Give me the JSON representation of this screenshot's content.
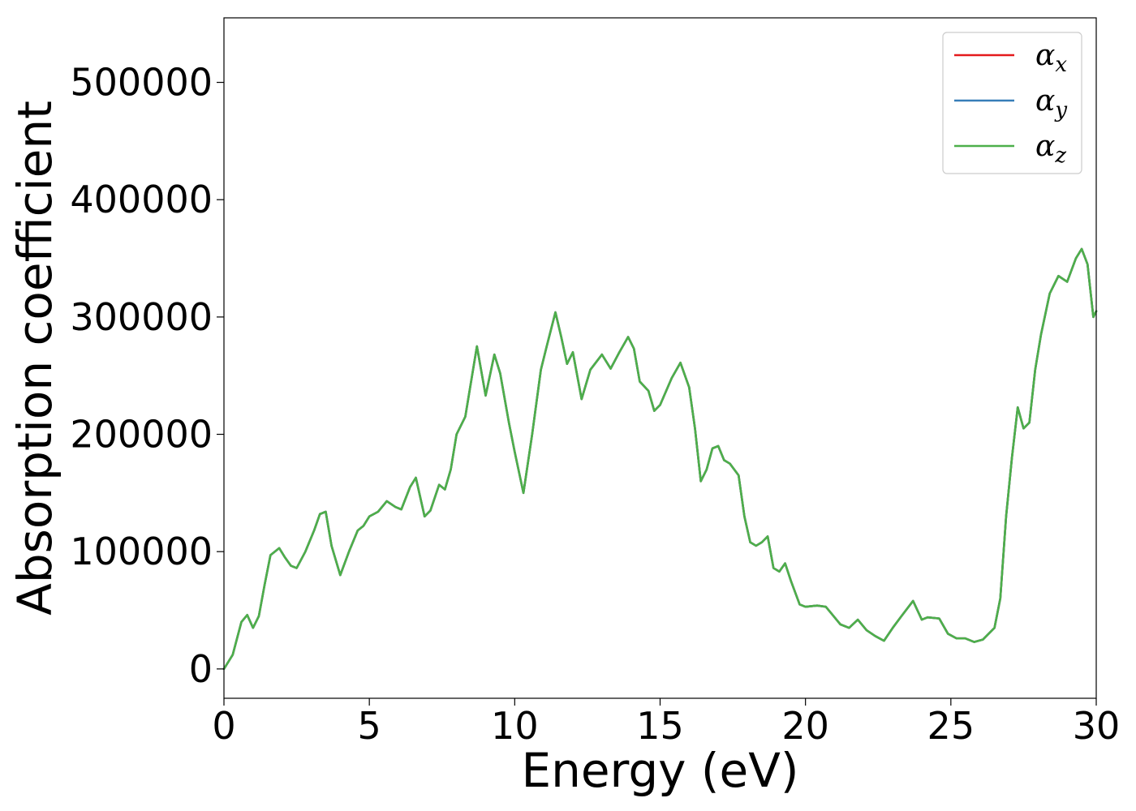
{
  "chart_data": {
    "type": "line",
    "title": "",
    "xlabel": "Energy (eV)",
    "ylabel": "Absorption coefficient",
    "xlim": [
      0,
      30
    ],
    "ylim": [
      -25000,
      555000
    ],
    "xticks": [
      0,
      5,
      10,
      15,
      20,
      25,
      30
    ],
    "xtick_labels": [
      "0",
      "5",
      "10",
      "15",
      "20",
      "25",
      "30"
    ],
    "yticks": [
      0,
      100000,
      200000,
      300000,
      400000,
      500000
    ],
    "ytick_labels": [
      "0",
      "100000",
      "200000",
      "300000",
      "400000",
      "500000"
    ],
    "grid": false,
    "legend": {
      "placement": "top-right",
      "entries": [
        {
          "symbol": "α",
          "sub": "x",
          "color": "#e41a1c"
        },
        {
          "symbol": "α",
          "sub": "y",
          "color": "#377eb8"
        },
        {
          "symbol": "α",
          "sub": "z",
          "color": "#4daf4a"
        }
      ]
    },
    "x": [
      0,
      0.3,
      0.6,
      0.8,
      1.0,
      1.2,
      1.4,
      1.6,
      1.9,
      2.1,
      2.3,
      2.5,
      2.8,
      3.1,
      3.3,
      3.5,
      3.7,
      4.0,
      4.3,
      4.6,
      4.8,
      5.0,
      5.3,
      5.6,
      5.9,
      6.1,
      6.4,
      6.6,
      6.9,
      7.1,
      7.4,
      7.6,
      7.8,
      8.0,
      8.3,
      8.7,
      9.0,
      9.3,
      9.5,
      9.8,
      10.0,
      10.3,
      10.6,
      10.9,
      11.1,
      11.4,
      11.6,
      11.8,
      12.0,
      12.3,
      12.6,
      13.0,
      13.3,
      13.6,
      13.9,
      14.1,
      14.3,
      14.6,
      14.8,
      15.0,
      15.4,
      15.7,
      16.0,
      16.2,
      16.4,
      16.6,
      16.8,
      17.0,
      17.2,
      17.4,
      17.7,
      17.9,
      18.1,
      18.3,
      18.5,
      18.7,
      18.9,
      19.1,
      19.3,
      19.5,
      19.8,
      20.0,
      20.4,
      20.7,
      20.9,
      21.2,
      21.5,
      21.8,
      22.1,
      22.4,
      22.7,
      23.0,
      23.3,
      23.7,
      24.0,
      24.2,
      24.6,
      24.9,
      25.2,
      25.5,
      25.8,
      26.1,
      26.3,
      26.5,
      26.7,
      26.9,
      27.1,
      27.3,
      27.5,
      27.7,
      27.9,
      28.1,
      28.4,
      28.7,
      29.0,
      29.3,
      29.5,
      29.7,
      29.9,
      30.0
    ],
    "series": [
      {
        "name": "αx",
        "color": "#e41a1c",
        "values": [
          0,
          12000,
          40000,
          46000,
          35000,
          45000,
          72000,
          97000,
          103000,
          95000,
          88000,
          86000,
          100000,
          118000,
          132000,
          134000,
          105000,
          80000,
          100000,
          118000,
          122000,
          130000,
          134000,
          143000,
          138000,
          136000,
          155000,
          163000,
          130000,
          135000,
          157000,
          153000,
          170000,
          200000,
          215000,
          275000,
          233000,
          268000,
          252000,
          210000,
          185000,
          150000,
          200000,
          255000,
          275000,
          304000,
          283000,
          260000,
          270000,
          230000,
          255000,
          268000,
          256000,
          270000,
          283000,
          273000,
          245000,
          237000,
          220000,
          225000,
          248000,
          261000,
          240000,
          205000,
          160000,
          170000,
          188000,
          190000,
          178000,
          175000,
          165000,
          130000,
          108000,
          105000,
          108000,
          113000,
          86000,
          83000,
          90000,
          75000,
          55000,
          53000,
          54000,
          53000,
          47000,
          38000,
          35000,
          42000,
          33000,
          28000,
          24000,
          35000,
          45000,
          58000,
          42000,
          44000,
          43000,
          30000,
          26000,
          26000,
          23000,
          25000,
          30000,
          35000,
          60000,
          130000,
          180000,
          223000,
          205000,
          210000,
          255000,
          285000,
          320000,
          335000,
          330000,
          350000,
          358000,
          345000,
          300000,
          305000
        ]
      },
      {
        "name": "αy",
        "color": "#377eb8",
        "values": [
          0,
          12000,
          40000,
          46000,
          35000,
          45000,
          72000,
          97000,
          103000,
          95000,
          88000,
          86000,
          100000,
          118000,
          132000,
          134000,
          105000,
          80000,
          100000,
          118000,
          122000,
          130000,
          134000,
          143000,
          138000,
          136000,
          155000,
          163000,
          130000,
          135000,
          157000,
          153000,
          170000,
          200000,
          215000,
          275000,
          233000,
          268000,
          252000,
          210000,
          185000,
          150000,
          200000,
          255000,
          275000,
          304000,
          283000,
          260000,
          270000,
          230000,
          255000,
          268000,
          256000,
          270000,
          283000,
          273000,
          245000,
          237000,
          220000,
          225000,
          248000,
          261000,
          240000,
          205000,
          160000,
          170000,
          188000,
          190000,
          178000,
          175000,
          165000,
          130000,
          108000,
          105000,
          108000,
          113000,
          86000,
          83000,
          90000,
          75000,
          55000,
          53000,
          54000,
          53000,
          47000,
          38000,
          35000,
          42000,
          33000,
          28000,
          24000,
          35000,
          45000,
          58000,
          42000,
          44000,
          43000,
          30000,
          26000,
          26000,
          23000,
          25000,
          30000,
          35000,
          60000,
          130000,
          180000,
          223000,
          205000,
          210000,
          255000,
          285000,
          320000,
          335000,
          330000,
          350000,
          358000,
          345000,
          300000,
          305000
        ]
      },
      {
        "name": "αz",
        "color": "#4daf4a",
        "values": [
          0,
          12000,
          40000,
          46000,
          35000,
          45000,
          72000,
          97000,
          103000,
          95000,
          88000,
          86000,
          100000,
          118000,
          132000,
          134000,
          105000,
          80000,
          100000,
          118000,
          122000,
          130000,
          134000,
          143000,
          138000,
          136000,
          155000,
          163000,
          130000,
          135000,
          157000,
          153000,
          170000,
          200000,
          215000,
          275000,
          233000,
          268000,
          252000,
          210000,
          185000,
          150000,
          200000,
          255000,
          275000,
          304000,
          283000,
          260000,
          270000,
          230000,
          255000,
          268000,
          256000,
          270000,
          283000,
          273000,
          245000,
          237000,
          220000,
          225000,
          248000,
          261000,
          240000,
          205000,
          160000,
          170000,
          188000,
          190000,
          178000,
          175000,
          165000,
          130000,
          108000,
          105000,
          108000,
          113000,
          86000,
          83000,
          90000,
          75000,
          55000,
          53000,
          54000,
          53000,
          47000,
          38000,
          35000,
          42000,
          33000,
          28000,
          24000,
          35000,
          45000,
          58000,
          42000,
          44000,
          43000,
          30000,
          26000,
          26000,
          23000,
          25000,
          30000,
          35000,
          60000,
          130000,
          180000,
          223000,
          205000,
          210000,
          255000,
          285000,
          320000,
          335000,
          330000,
          350000,
          358000,
          345000,
          300000,
          305000
        ]
      }
    ]
  }
}
